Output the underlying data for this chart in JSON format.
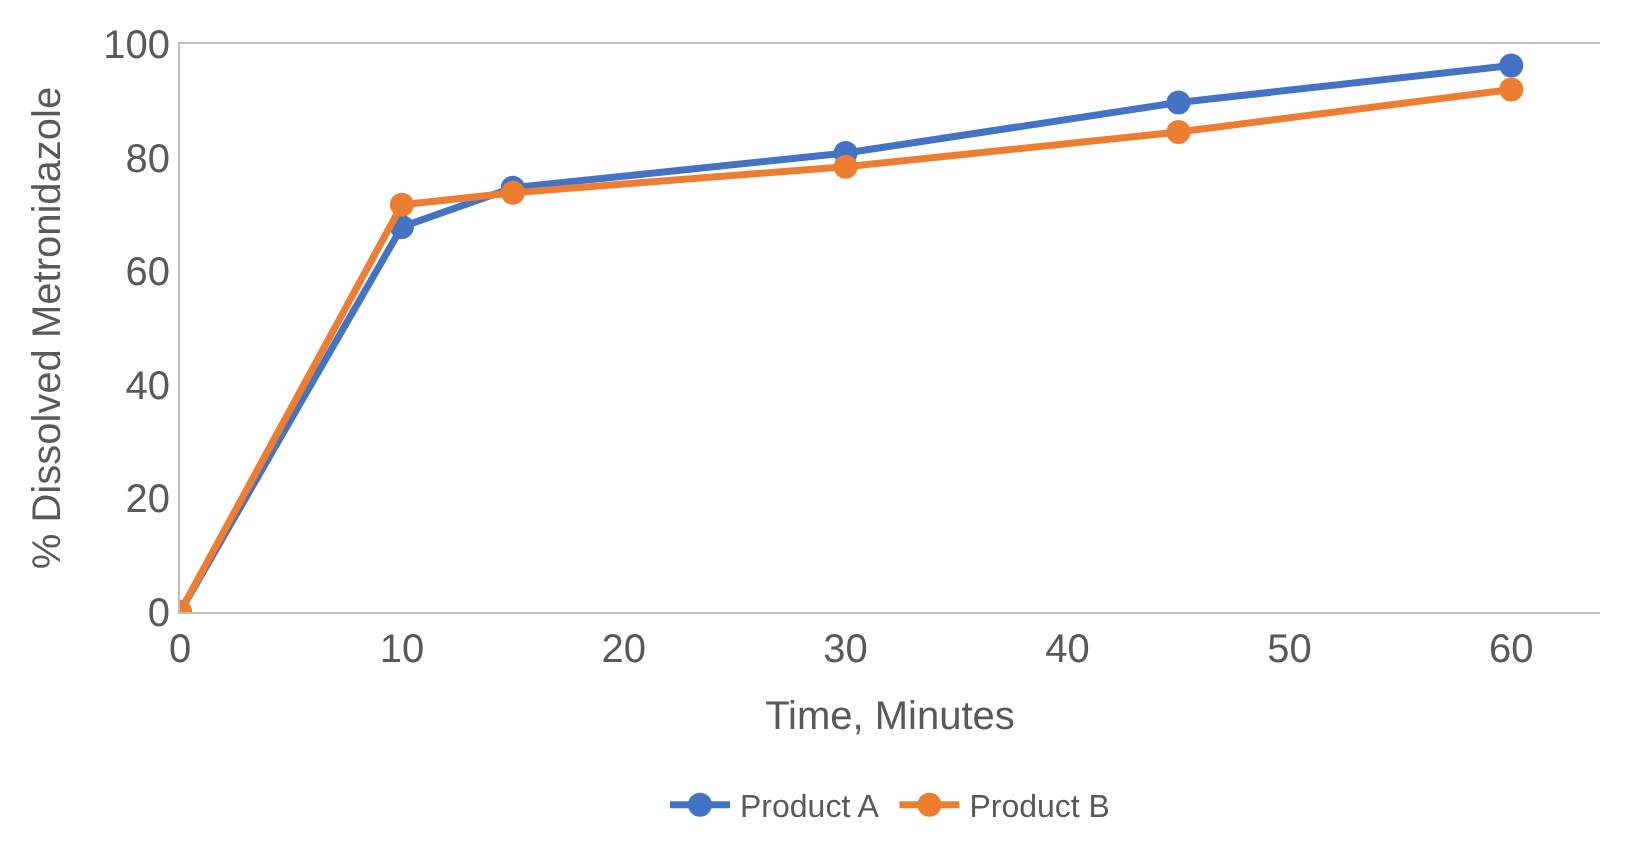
{
  "chart_data": {
    "type": "line",
    "xlabel": "Time, Minutes",
    "ylabel": "% Dissolved Metronidazole",
    "x": [
      0,
      10,
      15,
      30,
      45,
      60
    ],
    "series": [
      {
        "name": "Product A",
        "color": "#4472c4",
        "values": [
          0,
          67.8,
          74.7,
          80.8,
          89.7,
          96.2
        ]
      },
      {
        "name": "Product B",
        "color": "#ed7d31",
        "values": [
          0,
          71.7,
          73.8,
          78.4,
          84.5,
          92.0
        ]
      }
    ],
    "xlim": [
      0,
      64
    ],
    "xticks": [
      0,
      10,
      20,
      30,
      40,
      50,
      60
    ],
    "ylim": [
      0,
      100
    ],
    "yticks": [
      0,
      20,
      40,
      60,
      80,
      100
    ],
    "legend": "bottom",
    "marker": "circle",
    "line_style": "solid"
  }
}
